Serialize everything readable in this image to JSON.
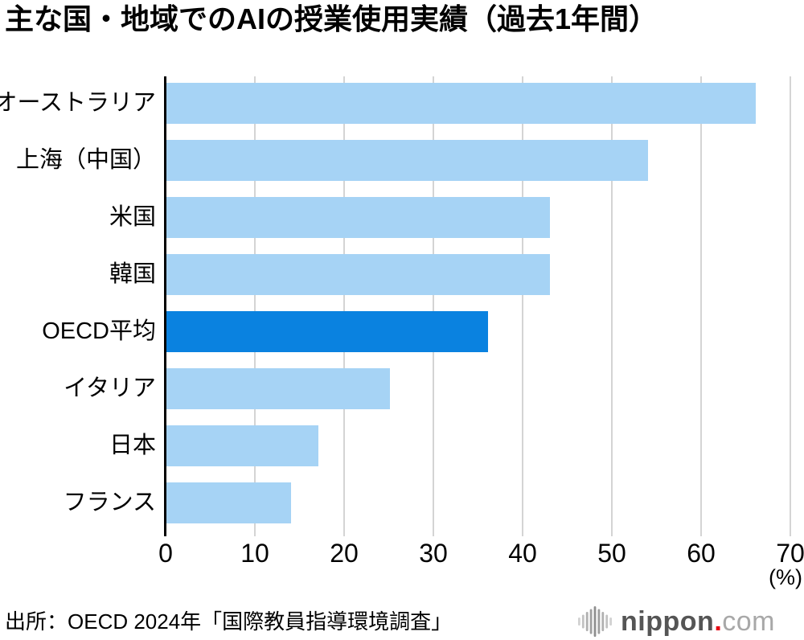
{
  "title": "主な国・地域でのAIの授業使用実績（過去1年間）",
  "source": "出所：OECD 2024年「国際教員指導環境調査」",
  "logo": {
    "icon": "soundwave-icon",
    "text_main": "nippon",
    "text_dot": ".",
    "text_tld": "com"
  },
  "colors": {
    "bar_light": "#a6d3f5",
    "bar_highlight": "#0a82e0",
    "gridline": "#d4d4d4",
    "axis": "#000000",
    "logo_main": "#555555",
    "logo_dot": "#e60012",
    "logo_tld": "#a8a8a8"
  },
  "chart_data": {
    "type": "bar",
    "orientation": "horizontal",
    "title": "主な国・地域でのAIの授業使用実績（過去1年間）",
    "categories": [
      "オーストラリア",
      "上海（中国）",
      "米国",
      "韓国",
      "OECD平均",
      "イタリア",
      "日本",
      "フランス"
    ],
    "values": [
      66,
      54,
      43,
      43,
      36,
      25,
      17,
      14
    ],
    "highlight_index": 4,
    "highlight_category": "OECD平均",
    "xlabel": "(%)",
    "xticks": [
      0,
      10,
      20,
      30,
      40,
      50,
      60,
      70
    ],
    "xlim": [
      0,
      70
    ],
    "grid": true,
    "legend": false
  }
}
